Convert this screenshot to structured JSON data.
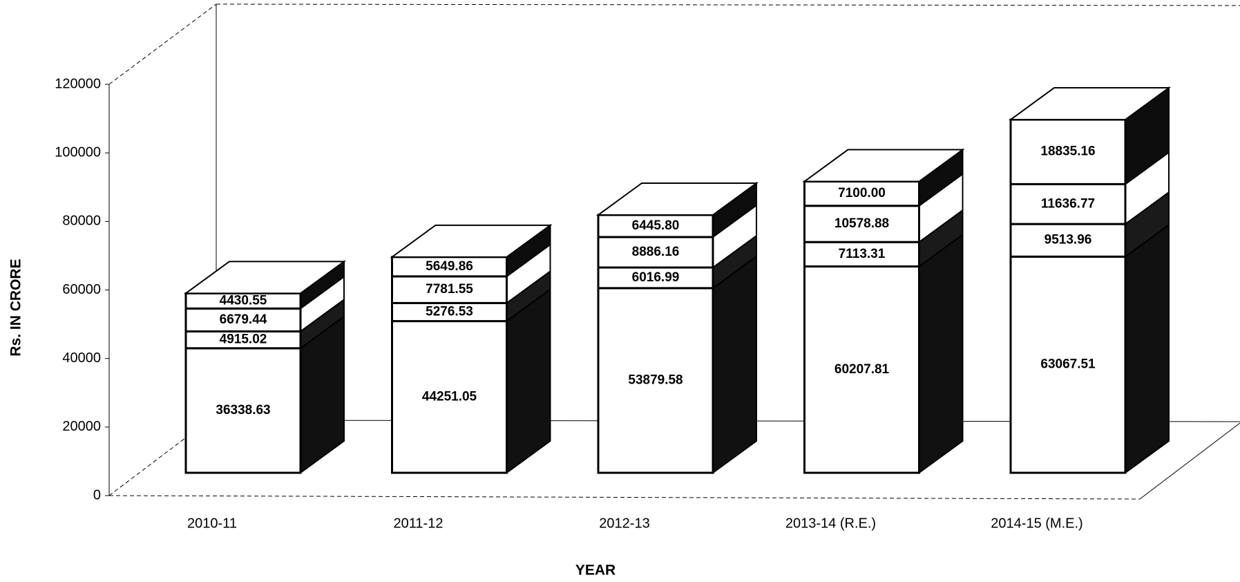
{
  "chart_data": {
    "type": "bar3d_stacked",
    "x_label": "YEAR",
    "y_label": "Rs. IN CRORE",
    "categories": [
      "2010-11",
      "2011-12",
      "2012-13",
      "2013-14 (R.E.)",
      "2014-15 (M.E.)"
    ],
    "series": [
      {
        "color": "#ffffff",
        "values": [
          36338.63,
          44251.05,
          53879.58,
          60207.81,
          63067.51
        ],
        "value_labels": [
          "36338.63",
          "44251.05",
          "53879.58",
          "60207.81",
          "63067.51"
        ]
      },
      {
        "color": "#ffffff",
        "values": [
          4915.02,
          5276.53,
          6016.99,
          7113.31,
          9513.96
        ],
        "value_labels": [
          "4915.02",
          "5276.53",
          "6016.99",
          "7113.31",
          "9513.96"
        ]
      },
      {
        "color": "#ffffff",
        "values": [
          6679.44,
          7781.55,
          8886.16,
          10578.88,
          11636.77
        ],
        "value_labels": [
          "6679.44",
          "7781.55",
          "8886.16",
          "10578.88",
          "11636.77"
        ]
      },
      {
        "color": "#ffffff",
        "values": [
          4430.55,
          5649.86,
          6445.8,
          7100,
          18835.16
        ],
        "value_labels": [
          "4430.55",
          "5649.86",
          "6445.80",
          "7100.00",
          "18835.16"
        ]
      }
    ],
    "ylim": [
      0,
      120000
    ],
    "yticks": [
      0,
      20000,
      40000,
      60000,
      80000,
      100000,
      120000
    ],
    "grid": false
  }
}
